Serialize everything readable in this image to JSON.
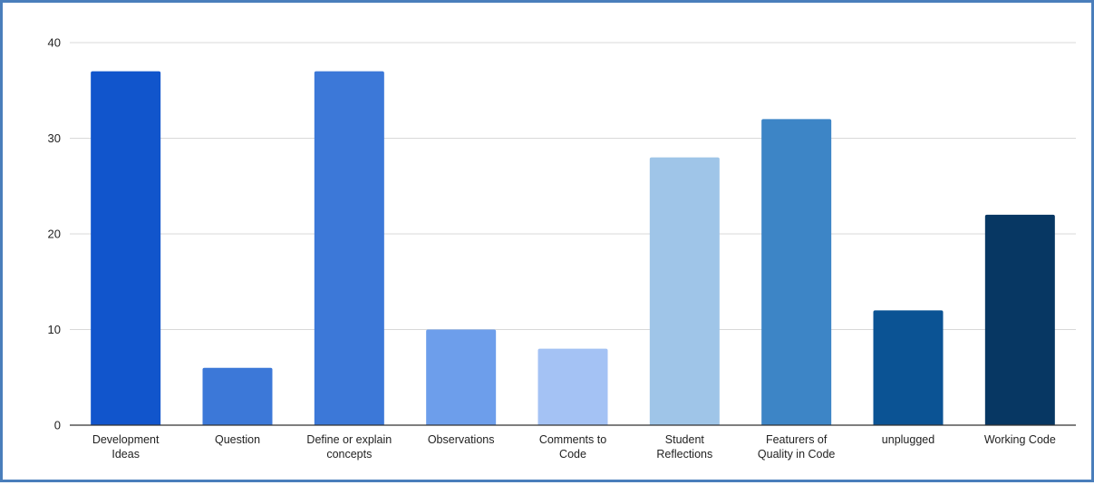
{
  "chart_data": {
    "type": "bar",
    "title": "",
    "xlabel": "",
    "ylabel": "",
    "ylim": [
      0,
      40
    ],
    "yticks": [
      0,
      10,
      20,
      30,
      40
    ],
    "grid": true,
    "legend": "none",
    "categories": [
      [
        "Development",
        "Ideas"
      ],
      [
        "Question"
      ],
      [
        "Define or explain",
        "concepts"
      ],
      [
        "Observations"
      ],
      [
        "Comments to",
        "Code"
      ],
      [
        "Student",
        "Reflections"
      ],
      [
        "Featurers of",
        "Quality in Code"
      ],
      [
        "unplugged"
      ],
      [
        "Working Code"
      ]
    ],
    "values": [
      37,
      6,
      37,
      10,
      8,
      28,
      32,
      12,
      22
    ],
    "colors": [
      "#1155cc",
      "#3c78d8",
      "#3c78d8",
      "#6d9eeb",
      "#a4c2f4",
      "#9fc5e8",
      "#3d85c6",
      "#0b5394",
      "#073763"
    ]
  }
}
